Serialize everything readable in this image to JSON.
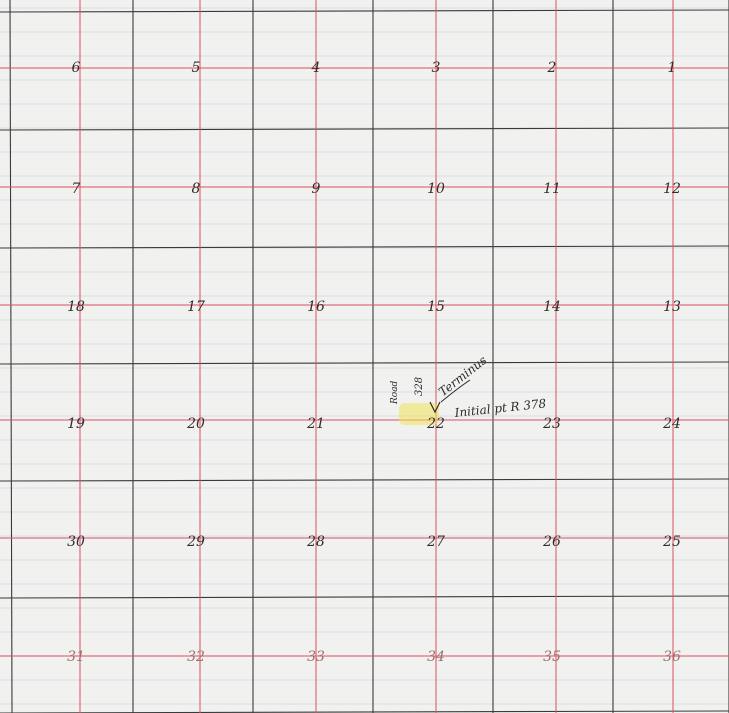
{
  "map": {
    "township_sections": [
      [
        "6",
        "5",
        "4",
        "3",
        "2",
        "1"
      ],
      [
        "7",
        "8",
        "9",
        "10",
        "11",
        "12"
      ],
      [
        "18",
        "17",
        "16",
        "15",
        "14",
        "13"
      ],
      [
        "19",
        "20",
        "21",
        "22",
        "23",
        "24"
      ],
      [
        "30",
        "29",
        "28",
        "27",
        "26",
        "25"
      ],
      [
        "31",
        "32",
        "33",
        "34",
        "35",
        "36"
      ]
    ],
    "annotations": {
      "road": "Road",
      "road_number": "328",
      "terminus": "Terminus",
      "initial_point": "Initial pt R 378"
    },
    "colors": {
      "paper": "#f1f1ef",
      "grid_ink": "#3a3a3a",
      "red_rule": "#e05060",
      "highlight": "#f0e15a"
    }
  }
}
